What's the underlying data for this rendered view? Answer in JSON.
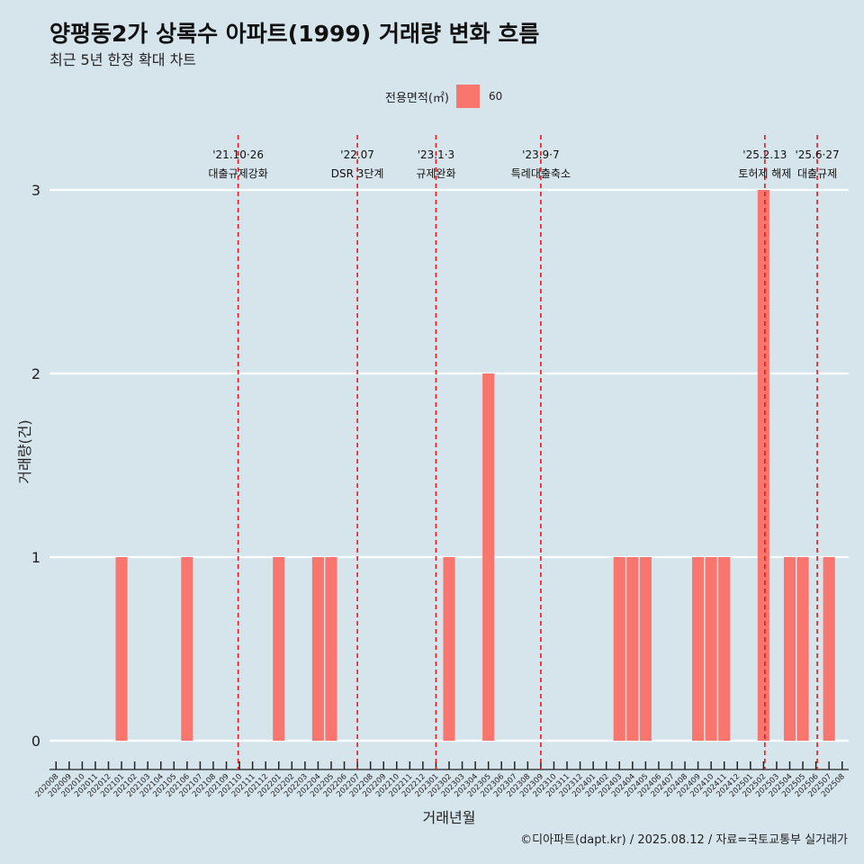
{
  "title": "양평동2가 상록수 아파트(1999) 거래량 변화 흐름",
  "subtitle": "최근 5년 한정 확대 차트",
  "caption": "©디아파트(dapt.kr) / 2025.08.12 / 자료=국토교통부 실거래가",
  "colors": {
    "background": "#d6e4ec",
    "bar": "#f8766d",
    "event_line": "#e31a1c",
    "grid": "#ffffff"
  },
  "legend": {
    "title": "전용면적(㎡)",
    "items": [
      {
        "label": "60",
        "color": "#f8766d"
      }
    ]
  },
  "chart_data": {
    "type": "bar",
    "xlabel": "거래년월",
    "ylabel": "거래량(건)",
    "ylim": [
      0,
      3
    ],
    "yticks": [
      0,
      1,
      2,
      3
    ],
    "grid": true,
    "legend_position": "top",
    "categories": [
      "202008",
      "202009",
      "202010",
      "202011",
      "202012",
      "202101",
      "202102",
      "202103",
      "202104",
      "202105",
      "202106",
      "202107",
      "202108",
      "202109",
      "202110",
      "202111",
      "202112",
      "202201",
      "202202",
      "202203",
      "202204",
      "202205",
      "202206",
      "202207",
      "202208",
      "202209",
      "202210",
      "202211",
      "202212",
      "202301",
      "202302",
      "202303",
      "202304",
      "202305",
      "202306",
      "202307",
      "202308",
      "202309",
      "202310",
      "202311",
      "202312",
      "202401",
      "202402",
      "202403",
      "202404",
      "202405",
      "202406",
      "202407",
      "202408",
      "202409",
      "202410",
      "202411",
      "202412",
      "202501",
      "202502",
      "202503",
      "202504",
      "202505",
      "202506",
      "202507",
      "202508"
    ],
    "series": [
      {
        "name": "60",
        "values": [
          0,
          0,
          0,
          0,
          0,
          1,
          0,
          0,
          0,
          0,
          1,
          0,
          0,
          0,
          0,
          0,
          0,
          1,
          0,
          0,
          1,
          1,
          0,
          0,
          0,
          0,
          0,
          0,
          0,
          0,
          1,
          0,
          0,
          2,
          0,
          0,
          0,
          0,
          0,
          0,
          0,
          0,
          0,
          1,
          1,
          1,
          0,
          0,
          0,
          1,
          1,
          1,
          0,
          0,
          3,
          0,
          1,
          1,
          0,
          1,
          0
        ]
      }
    ],
    "events": [
      {
        "pos": 14.4,
        "date": "'21.10·26",
        "label": "대출규제강화"
      },
      {
        "pos": 23.5,
        "date": "'22.07",
        "label": "DSR 3단계"
      },
      {
        "pos": 29.5,
        "date": "'23.1·3",
        "label": "규제완화"
      },
      {
        "pos": 37.5,
        "date": "'23.9·7",
        "label": "특례대출축소"
      },
      {
        "pos": 54.6,
        "date": "'25.2.13",
        "label": "토허제 해제"
      },
      {
        "pos": 58.6,
        "date": "'25.6·27",
        "label": "대출규제"
      }
    ]
  }
}
